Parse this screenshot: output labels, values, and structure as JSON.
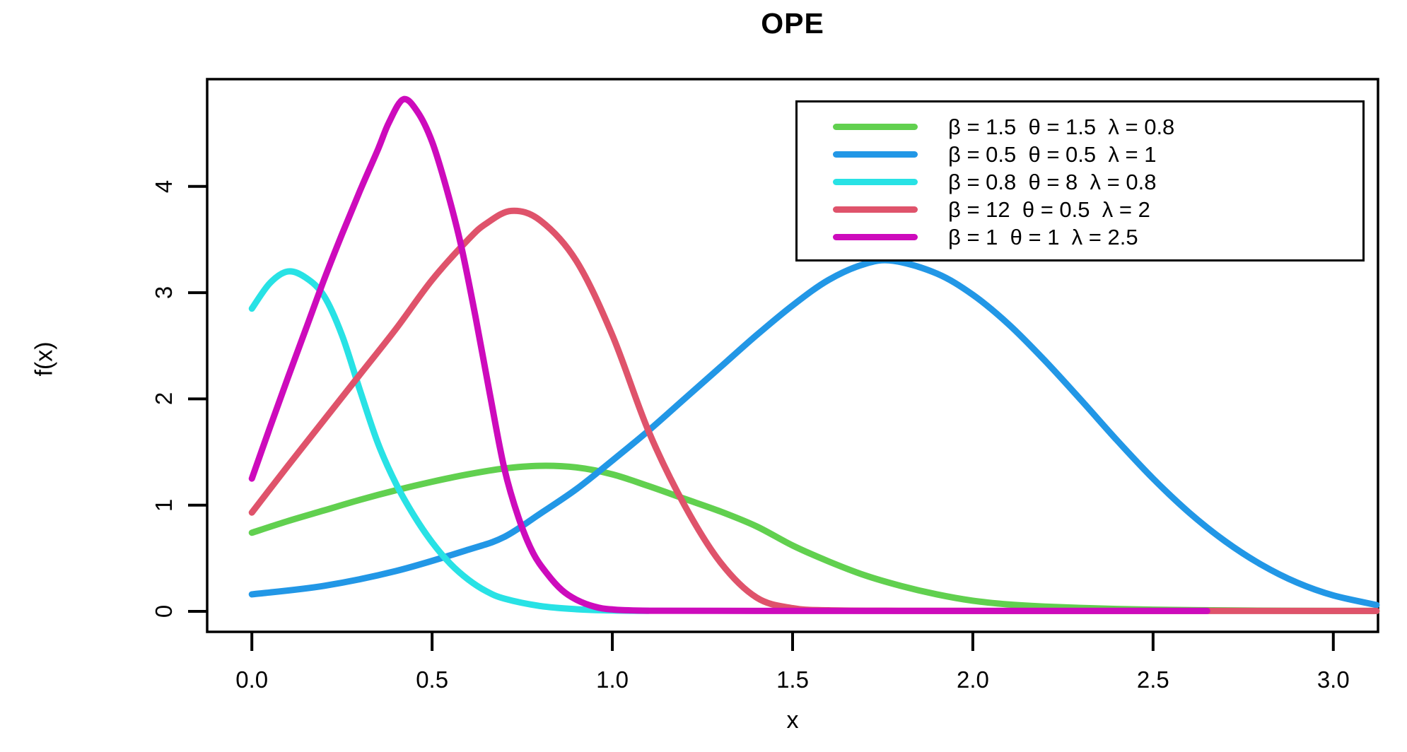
{
  "chart_data": {
    "type": "line",
    "title": "OPE",
    "xlabel": "x",
    "ylabel": "f(x)",
    "xlim": [
      0,
      3
    ],
    "ylim": [
      0,
      4.85
    ],
    "grid": false,
    "legend_position": "top-right",
    "axis_color": "#000000",
    "background": "#ffffff",
    "x_ticks": {
      "values": [
        0,
        0.5,
        1.0,
        1.5,
        2.0,
        2.5,
        3.0
      ],
      "labels": [
        "0.0",
        "0.5",
        "1.0",
        "1.5",
        "2.0",
        "2.5",
        "3.0"
      ]
    },
    "y_ticks": {
      "values": [
        0,
        1,
        2,
        3,
        4
      ],
      "labels": [
        "0",
        "1",
        "2",
        "3",
        "4"
      ]
    },
    "series": [
      {
        "name": "beta-1.5-theta-1.5-lambda-0.8",
        "label": "β = 1.5  θ = 1.5  λ = 0.8",
        "color": "#61D04F",
        "points": [
          [
            0,
            0.74
          ],
          [
            0.1,
            0.85
          ],
          [
            0.2,
            0.95
          ],
          [
            0.3,
            1.05
          ],
          [
            0.4,
            1.14
          ],
          [
            0.5,
            1.22
          ],
          [
            0.6,
            1.29
          ],
          [
            0.7,
            1.345
          ],
          [
            0.8,
            1.37
          ],
          [
            0.9,
            1.355
          ],
          [
            1.0,
            1.29
          ],
          [
            1.1,
            1.18
          ],
          [
            1.2,
            1.06
          ],
          [
            1.3,
            0.94
          ],
          [
            1.4,
            0.8
          ],
          [
            1.5,
            0.62
          ],
          [
            1.6,
            0.47
          ],
          [
            1.7,
            0.34
          ],
          [
            1.8,
            0.24
          ],
          [
            1.9,
            0.16
          ],
          [
            2.0,
            0.1
          ],
          [
            2.1,
            0.065
          ],
          [
            2.2,
            0.045
          ],
          [
            2.35,
            0.027
          ],
          [
            2.5,
            0.016
          ],
          [
            2.7,
            0.009
          ],
          [
            2.9,
            0.005
          ],
          [
            3.12,
            0.004
          ]
        ]
      },
      {
        "name": "beta-0.5-theta-0.5-lambda-1",
        "label": "β = 0.5  θ = 0.5  λ = 1",
        "color": "#2297E6",
        "points": [
          [
            0,
            0.16
          ],
          [
            0.2,
            0.24
          ],
          [
            0.4,
            0.38
          ],
          [
            0.6,
            0.58
          ],
          [
            0.7,
            0.7
          ],
          [
            0.8,
            0.92
          ],
          [
            0.9,
            1.15
          ],
          [
            1.0,
            1.42
          ],
          [
            1.1,
            1.7
          ],
          [
            1.2,
            2.0
          ],
          [
            1.3,
            2.3
          ],
          [
            1.4,
            2.6
          ],
          [
            1.5,
            2.88
          ],
          [
            1.6,
            3.12
          ],
          [
            1.7,
            3.27
          ],
          [
            1.78,
            3.3
          ],
          [
            1.9,
            3.18
          ],
          [
            2.0,
            2.98
          ],
          [
            2.1,
            2.7
          ],
          [
            2.2,
            2.36
          ],
          [
            2.3,
            1.99
          ],
          [
            2.4,
            1.61
          ],
          [
            2.5,
            1.25
          ],
          [
            2.6,
            0.93
          ],
          [
            2.7,
            0.66
          ],
          [
            2.8,
            0.44
          ],
          [
            2.9,
            0.27
          ],
          [
            3.0,
            0.15
          ],
          [
            3.12,
            0.06
          ]
        ]
      },
      {
        "name": "beta-0.8-theta-8-lambda-0.8",
        "label": "β = 0.8  θ = 8  λ = 0.8",
        "color": "#28E2E5",
        "points": [
          [
            0,
            2.85
          ],
          [
            0.05,
            3.09
          ],
          [
            0.1,
            3.2
          ],
          [
            0.15,
            3.14
          ],
          [
            0.2,
            2.97
          ],
          [
            0.25,
            2.6
          ],
          [
            0.3,
            2.08
          ],
          [
            0.35,
            1.58
          ],
          [
            0.4,
            1.2
          ],
          [
            0.45,
            0.9
          ],
          [
            0.5,
            0.65
          ],
          [
            0.55,
            0.45
          ],
          [
            0.6,
            0.3
          ],
          [
            0.65,
            0.19
          ],
          [
            0.7,
            0.12
          ],
          [
            0.8,
            0.05
          ],
          [
            0.9,
            0.02
          ],
          [
            1.0,
            0.008
          ],
          [
            1.1,
            0.005
          ]
        ]
      },
      {
        "name": "beta-12-theta-0.5-lambda-2",
        "label": "β = 12  θ = 0.5  λ = 2",
        "color": "#DF536B",
        "points": [
          [
            0,
            0.93
          ],
          [
            0.1,
            1.37
          ],
          [
            0.2,
            1.8
          ],
          [
            0.3,
            2.23
          ],
          [
            0.4,
            2.66
          ],
          [
            0.5,
            3.12
          ],
          [
            0.6,
            3.5
          ],
          [
            0.65,
            3.65
          ],
          [
            0.72,
            3.77
          ],
          [
            0.8,
            3.68
          ],
          [
            0.9,
            3.3
          ],
          [
            1.0,
            2.6
          ],
          [
            1.1,
            1.7
          ],
          [
            1.2,
            1.0
          ],
          [
            1.3,
            0.46
          ],
          [
            1.4,
            0.13
          ],
          [
            1.5,
            0.03
          ],
          [
            1.6,
            0.01
          ],
          [
            1.8,
            0.005
          ],
          [
            2.2,
            0.004
          ],
          [
            2.65,
            0.004
          ],
          [
            3.12,
            0.004
          ]
        ]
      },
      {
        "name": "beta-1-theta-1-lambda-2.5",
        "label": "β = 1  θ = 1  λ = 2.5",
        "color": "#CD0BBC",
        "points": [
          [
            0,
            1.25
          ],
          [
            0.05,
            1.73
          ],
          [
            0.1,
            2.2
          ],
          [
            0.15,
            2.66
          ],
          [
            0.2,
            3.12
          ],
          [
            0.25,
            3.55
          ],
          [
            0.3,
            3.96
          ],
          [
            0.35,
            4.35
          ],
          [
            0.38,
            4.6
          ],
          [
            0.42,
            4.82
          ],
          [
            0.46,
            4.7
          ],
          [
            0.5,
            4.42
          ],
          [
            0.54,
            3.98
          ],
          [
            0.58,
            3.45
          ],
          [
            0.62,
            2.78
          ],
          [
            0.66,
            2.05
          ],
          [
            0.7,
            1.35
          ],
          [
            0.74,
            0.88
          ],
          [
            0.78,
            0.55
          ],
          [
            0.82,
            0.35
          ],
          [
            0.86,
            0.2
          ],
          [
            0.9,
            0.11
          ],
          [
            0.95,
            0.045
          ],
          [
            1.0,
            0.018
          ],
          [
            1.1,
            0.006
          ],
          [
            1.4,
            0.004
          ],
          [
            1.8,
            0.004
          ],
          [
            2.2,
            0.004
          ],
          [
            2.65,
            0.004
          ]
        ]
      }
    ]
  }
}
